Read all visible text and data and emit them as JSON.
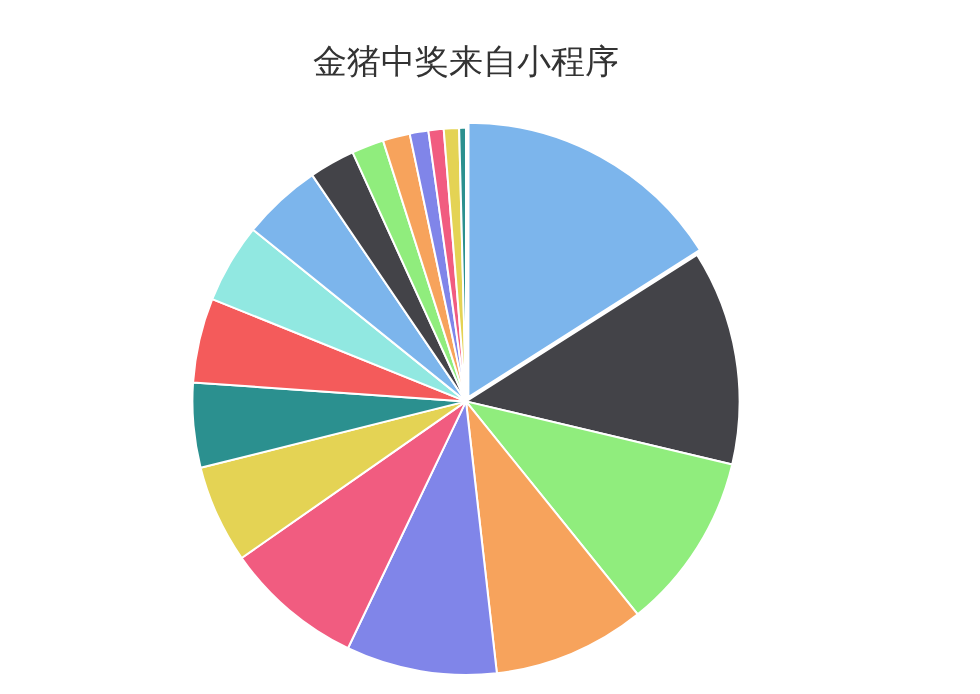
{
  "chart_data": {
    "type": "pie",
    "title": "金猪中奖来自小程序",
    "categories": [
      null,
      null,
      null,
      null,
      null,
      null,
      null,
      null,
      null,
      null,
      null,
      null,
      null,
      null,
      null,
      null,
      null,
      null
    ],
    "values": [
      16,
      12.7,
      10.5,
      9,
      8.9,
      8.2,
      5.8,
      5,
      5,
      4.7,
      4.7,
      2.7,
      1.9,
      1.6,
      1.1,
      0.9,
      0.9,
      0.4
    ],
    "colors": [
      "#7cb5ec",
      "#434348",
      "#90ed7d",
      "#f7a35c",
      "#8085e9",
      "#f15c80",
      "#e4d354",
      "#2b908f",
      "#f45b5b",
      "#91e8e1",
      "#7cb5ec",
      "#434348",
      "#90ed7d",
      "#f7a35c",
      "#8085e9",
      "#f15c80",
      "#e4d354",
      "#2b908f"
    ],
    "legend": false
  }
}
